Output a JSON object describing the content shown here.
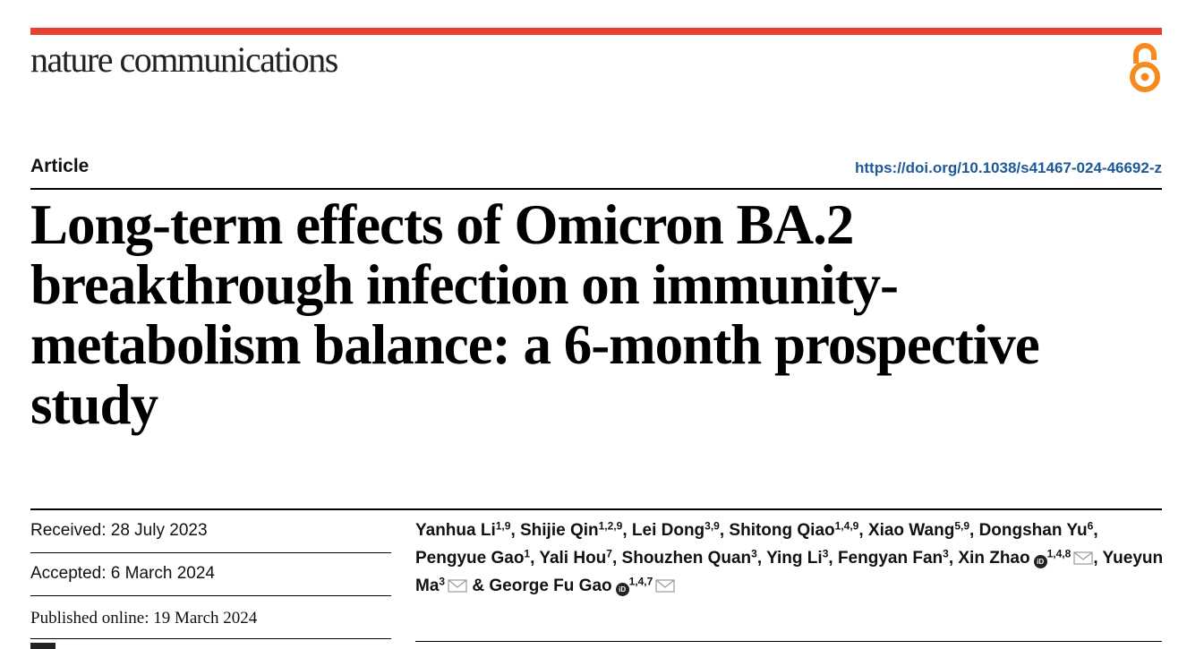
{
  "journal": "nature communications",
  "icons": {
    "open_access": "open-access-icon",
    "orcid": "orcid-icon",
    "mail": "envelope-icon"
  },
  "colors": {
    "brand_bar": "#e8402c",
    "open_access": "#f68a1f",
    "link": "#1d5a96"
  },
  "article_type": "Article",
  "doi": "https://doi.org/10.1038/s41467-024-46692-z",
  "title": "Long-term effects of Omicron BA.2 breakthrough infection on immunity-metabolism balance: a 6-month prospective study",
  "received": "Received: 28 July 2023",
  "accepted": "Accepted: 6 March 2024",
  "published": "Published online: 19 March 2024",
  "authors": [
    {
      "name": "Yanhua Li",
      "aff": "1,9",
      "sep": ", "
    },
    {
      "name": "Shijie Qin",
      "aff": "1,2,9",
      "sep": ", "
    },
    {
      "name": "Lei Dong",
      "aff": "3,9",
      "sep": ", "
    },
    {
      "name": "Shitong Qiao",
      "aff": "1,4,9",
      "sep": ", "
    },
    {
      "name": "Xiao Wang",
      "aff": "5,9",
      "sep": ", "
    },
    {
      "name": "Dongshan Yu",
      "aff": "6",
      "sep": ", "
    },
    {
      "name": "Pengyue Gao",
      "aff": "1",
      "sep": ", "
    },
    {
      "name": "Yali Hou",
      "aff": "7",
      "sep": ", "
    },
    {
      "name": "Shouzhen Quan",
      "aff": "3",
      "sep": ", "
    },
    {
      "name": "Ying Li",
      "aff": "3",
      "sep": ", "
    },
    {
      "name": "Fengyan Fan",
      "aff": "3",
      "sep": ", "
    },
    {
      "name": "Xin Zhao",
      "aff": "1,4,8",
      "orcid": true,
      "mail": true,
      "sep": ", "
    },
    {
      "name": "Yueyun Ma",
      "aff": "3",
      "mail": true,
      "sep": " & "
    },
    {
      "name": "George Fu Gao",
      "aff": "1,4,7",
      "orcid": true,
      "mail": true,
      "sep": ""
    }
  ]
}
